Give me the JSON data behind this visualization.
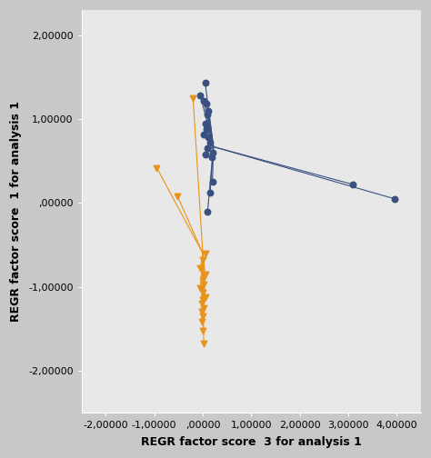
{
  "title": "",
  "xlabel": "REGR factor score  3 for analysis 1",
  "ylabel": "REGR factor score  1 for analysis 1",
  "xlim": [
    -2.5,
    4.5
  ],
  "ylim": [
    -2.5,
    2.3
  ],
  "xticks": [
    -2.0,
    -1.0,
    0.0,
    1.0,
    2.0,
    3.0,
    4.0
  ],
  "yticks": [
    -2.0,
    -1.0,
    0.0,
    1.0,
    2.0
  ],
  "xtick_labels": [
    "-2,00000",
    "-1,00000",
    ",00000",
    "1,00000",
    "2,00000",
    "3,00000",
    "4,00000"
  ],
  "ytick_labels": [
    "-2,00000",
    "-1,00000",
    ",00000",
    "1,00000",
    "2,00000"
  ],
  "fig_bg_color": "#c8c8c8",
  "plot_bg_color": "#e8e8e8",
  "blue_color": "#3a5080",
  "orange_color": "#e8931a",
  "blue_points": [
    [
      0.05,
      1.43
    ],
    [
      -0.05,
      1.28
    ],
    [
      0.02,
      1.22
    ],
    [
      0.08,
      1.18
    ],
    [
      0.12,
      1.1
    ],
    [
      0.1,
      1.05
    ],
    [
      0.05,
      0.95
    ],
    [
      0.08,
      0.88
    ],
    [
      0.02,
      0.82
    ],
    [
      0.12,
      0.78
    ],
    [
      0.15,
      0.72
    ],
    [
      0.1,
      0.65
    ],
    [
      0.2,
      0.6
    ],
    [
      0.05,
      0.58
    ],
    [
      0.18,
      0.55
    ],
    [
      0.2,
      0.25
    ],
    [
      0.15,
      0.12
    ],
    [
      0.1,
      -0.1
    ],
    [
      3.1,
      0.22
    ],
    [
      3.95,
      0.05
    ]
  ],
  "blue_hub": [
    0.22,
    0.67
  ],
  "orange_points": [
    [
      -0.95,
      0.42
    ],
    [
      -0.52,
      0.08
    ],
    [
      -0.2,
      1.25
    ],
    [
      0.05,
      -0.6
    ],
    [
      0.0,
      -0.68
    ],
    [
      -0.05,
      -0.78
    ],
    [
      0.05,
      -0.85
    ],
    [
      0.0,
      -0.92
    ],
    [
      0.02,
      -0.97
    ],
    [
      -0.05,
      -1.02
    ],
    [
      0.0,
      -1.07
    ],
    [
      0.05,
      -1.12
    ],
    [
      0.0,
      -1.16
    ],
    [
      -0.02,
      -1.2
    ],
    [
      0.02,
      -1.25
    ],
    [
      -0.02,
      -1.3
    ],
    [
      0.0,
      -1.35
    ],
    [
      -0.02,
      -1.42
    ],
    [
      0.0,
      -1.52
    ],
    [
      0.02,
      -1.68
    ]
  ],
  "orange_hub": [
    0.0,
    -0.6
  ]
}
